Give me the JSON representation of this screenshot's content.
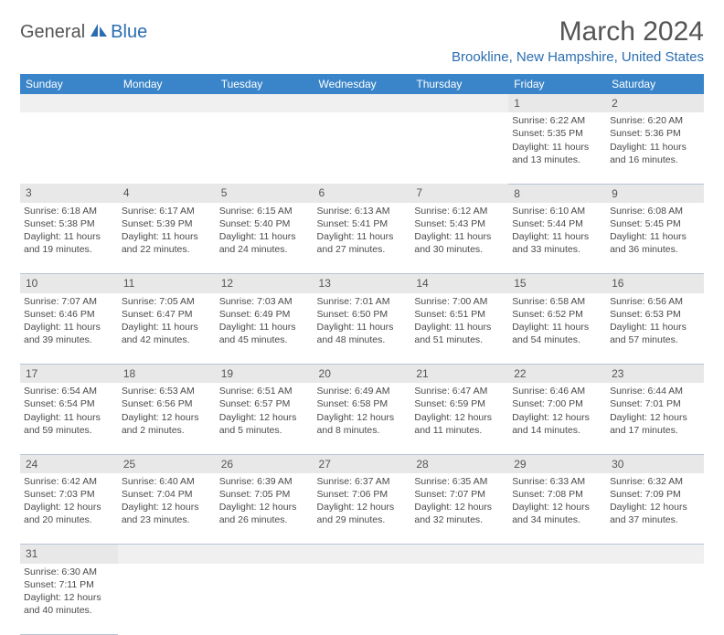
{
  "logo": {
    "text1": "General",
    "text2": "Blue"
  },
  "title": "March 2024",
  "location": "Brookline, New Hampshire, United States",
  "colors": {
    "header_bg": "#3a85c9",
    "header_fg": "#ffffff",
    "accent": "#2a6db0",
    "daynum_bg": "#e8e8e8",
    "border": "#b8c5d6",
    "text": "#4a4a4a"
  },
  "weekdays": [
    "Sunday",
    "Monday",
    "Tuesday",
    "Wednesday",
    "Thursday",
    "Friday",
    "Saturday"
  ],
  "weeks": [
    [
      null,
      null,
      null,
      null,
      null,
      {
        "n": "1",
        "sunrise": "Sunrise: 6:22 AM",
        "sunset": "Sunset: 5:35 PM",
        "day1": "Daylight: 11 hours",
        "day2": "and 13 minutes."
      },
      {
        "n": "2",
        "sunrise": "Sunrise: 6:20 AM",
        "sunset": "Sunset: 5:36 PM",
        "day1": "Daylight: 11 hours",
        "day2": "and 16 minutes."
      }
    ],
    [
      {
        "n": "3",
        "sunrise": "Sunrise: 6:18 AM",
        "sunset": "Sunset: 5:38 PM",
        "day1": "Daylight: 11 hours",
        "day2": "and 19 minutes."
      },
      {
        "n": "4",
        "sunrise": "Sunrise: 6:17 AM",
        "sunset": "Sunset: 5:39 PM",
        "day1": "Daylight: 11 hours",
        "day2": "and 22 minutes."
      },
      {
        "n": "5",
        "sunrise": "Sunrise: 6:15 AM",
        "sunset": "Sunset: 5:40 PM",
        "day1": "Daylight: 11 hours",
        "day2": "and 24 minutes."
      },
      {
        "n": "6",
        "sunrise": "Sunrise: 6:13 AM",
        "sunset": "Sunset: 5:41 PM",
        "day1": "Daylight: 11 hours",
        "day2": "and 27 minutes."
      },
      {
        "n": "7",
        "sunrise": "Sunrise: 6:12 AM",
        "sunset": "Sunset: 5:43 PM",
        "day1": "Daylight: 11 hours",
        "day2": "and 30 minutes."
      },
      {
        "n": "8",
        "sunrise": "Sunrise: 6:10 AM",
        "sunset": "Sunset: 5:44 PM",
        "day1": "Daylight: 11 hours",
        "day2": "and 33 minutes."
      },
      {
        "n": "9",
        "sunrise": "Sunrise: 6:08 AM",
        "sunset": "Sunset: 5:45 PM",
        "day1": "Daylight: 11 hours",
        "day2": "and 36 minutes."
      }
    ],
    [
      {
        "n": "10",
        "sunrise": "Sunrise: 7:07 AM",
        "sunset": "Sunset: 6:46 PM",
        "day1": "Daylight: 11 hours",
        "day2": "and 39 minutes."
      },
      {
        "n": "11",
        "sunrise": "Sunrise: 7:05 AM",
        "sunset": "Sunset: 6:47 PM",
        "day1": "Daylight: 11 hours",
        "day2": "and 42 minutes."
      },
      {
        "n": "12",
        "sunrise": "Sunrise: 7:03 AM",
        "sunset": "Sunset: 6:49 PM",
        "day1": "Daylight: 11 hours",
        "day2": "and 45 minutes."
      },
      {
        "n": "13",
        "sunrise": "Sunrise: 7:01 AM",
        "sunset": "Sunset: 6:50 PM",
        "day1": "Daylight: 11 hours",
        "day2": "and 48 minutes."
      },
      {
        "n": "14",
        "sunrise": "Sunrise: 7:00 AM",
        "sunset": "Sunset: 6:51 PM",
        "day1": "Daylight: 11 hours",
        "day2": "and 51 minutes."
      },
      {
        "n": "15",
        "sunrise": "Sunrise: 6:58 AM",
        "sunset": "Sunset: 6:52 PM",
        "day1": "Daylight: 11 hours",
        "day2": "and 54 minutes."
      },
      {
        "n": "16",
        "sunrise": "Sunrise: 6:56 AM",
        "sunset": "Sunset: 6:53 PM",
        "day1": "Daylight: 11 hours",
        "day2": "and 57 minutes."
      }
    ],
    [
      {
        "n": "17",
        "sunrise": "Sunrise: 6:54 AM",
        "sunset": "Sunset: 6:54 PM",
        "day1": "Daylight: 11 hours",
        "day2": "and 59 minutes."
      },
      {
        "n": "18",
        "sunrise": "Sunrise: 6:53 AM",
        "sunset": "Sunset: 6:56 PM",
        "day1": "Daylight: 12 hours",
        "day2": "and 2 minutes."
      },
      {
        "n": "19",
        "sunrise": "Sunrise: 6:51 AM",
        "sunset": "Sunset: 6:57 PM",
        "day1": "Daylight: 12 hours",
        "day2": "and 5 minutes."
      },
      {
        "n": "20",
        "sunrise": "Sunrise: 6:49 AM",
        "sunset": "Sunset: 6:58 PM",
        "day1": "Daylight: 12 hours",
        "day2": "and 8 minutes."
      },
      {
        "n": "21",
        "sunrise": "Sunrise: 6:47 AM",
        "sunset": "Sunset: 6:59 PM",
        "day1": "Daylight: 12 hours",
        "day2": "and 11 minutes."
      },
      {
        "n": "22",
        "sunrise": "Sunrise: 6:46 AM",
        "sunset": "Sunset: 7:00 PM",
        "day1": "Daylight: 12 hours",
        "day2": "and 14 minutes."
      },
      {
        "n": "23",
        "sunrise": "Sunrise: 6:44 AM",
        "sunset": "Sunset: 7:01 PM",
        "day1": "Daylight: 12 hours",
        "day2": "and 17 minutes."
      }
    ],
    [
      {
        "n": "24",
        "sunrise": "Sunrise: 6:42 AM",
        "sunset": "Sunset: 7:03 PM",
        "day1": "Daylight: 12 hours",
        "day2": "and 20 minutes."
      },
      {
        "n": "25",
        "sunrise": "Sunrise: 6:40 AM",
        "sunset": "Sunset: 7:04 PM",
        "day1": "Daylight: 12 hours",
        "day2": "and 23 minutes."
      },
      {
        "n": "26",
        "sunrise": "Sunrise: 6:39 AM",
        "sunset": "Sunset: 7:05 PM",
        "day1": "Daylight: 12 hours",
        "day2": "and 26 minutes."
      },
      {
        "n": "27",
        "sunrise": "Sunrise: 6:37 AM",
        "sunset": "Sunset: 7:06 PM",
        "day1": "Daylight: 12 hours",
        "day2": "and 29 minutes."
      },
      {
        "n": "28",
        "sunrise": "Sunrise: 6:35 AM",
        "sunset": "Sunset: 7:07 PM",
        "day1": "Daylight: 12 hours",
        "day2": "and 32 minutes."
      },
      {
        "n": "29",
        "sunrise": "Sunrise: 6:33 AM",
        "sunset": "Sunset: 7:08 PM",
        "day1": "Daylight: 12 hours",
        "day2": "and 34 minutes."
      },
      {
        "n": "30",
        "sunrise": "Sunrise: 6:32 AM",
        "sunset": "Sunset: 7:09 PM",
        "day1": "Daylight: 12 hours",
        "day2": "and 37 minutes."
      }
    ],
    [
      {
        "n": "31",
        "sunrise": "Sunrise: 6:30 AM",
        "sunset": "Sunset: 7:11 PM",
        "day1": "Daylight: 12 hours",
        "day2": "and 40 minutes."
      },
      null,
      null,
      null,
      null,
      null,
      null
    ]
  ]
}
